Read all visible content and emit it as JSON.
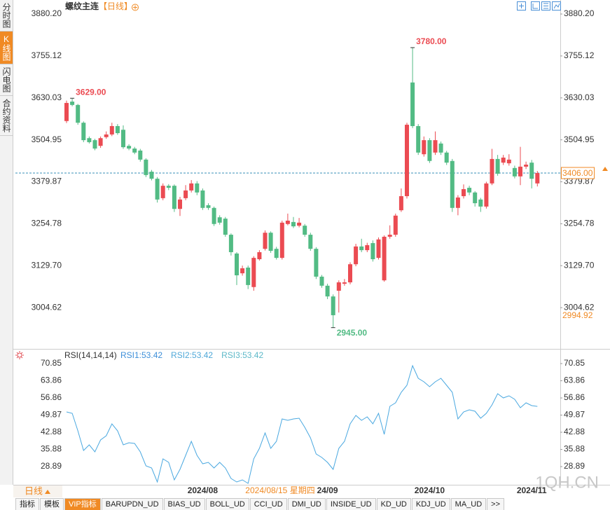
{
  "header": {
    "title": "螺纹主连",
    "period": "【日线】"
  },
  "sidebar": {
    "items": [
      "分时图",
      "K线图",
      "闪电图",
      "合约资料"
    ],
    "active": 1
  },
  "period_tab": "日线",
  "toolbar": {
    "items": [
      "指标",
      "模板",
      "VIP指标",
      "BARUPDN_UD",
      "BIAS_UD",
      "BOLL_UD",
      "CCI_UD",
      "DMI_UD",
      "INSIDE_UD",
      "KD_UD",
      "KDJ_UD",
      "MA_UD",
      ">>"
    ],
    "active": 2
  },
  "watermark": "1QH.CN",
  "chart_data": [
    {
      "type": "candlestick",
      "categories": [
        null,
        null,
        null,
        null,
        null,
        null,
        null,
        null,
        null,
        null,
        null,
        null,
        null,
        null,
        null,
        null,
        null,
        null,
        null,
        null,
        null,
        null,
        null,
        null,
        "2024/08",
        null,
        null,
        null,
        null,
        null,
        null,
        null,
        null,
        null,
        null,
        null,
        null,
        null,
        null,
        null,
        null,
        null,
        null,
        null,
        null,
        null,
        "24/09",
        null,
        null,
        null,
        null,
        null,
        null,
        null,
        null,
        null,
        null,
        null,
        null,
        null,
        null,
        null,
        null,
        null,
        "2024/10",
        null,
        null,
        null,
        null,
        null,
        null,
        null,
        null,
        null,
        null,
        null,
        null,
        null,
        null,
        null,
        null,
        null,
        "2024/11",
        null
      ],
      "open": [
        3561,
        3619,
        3609,
        3556,
        3510,
        3504,
        3487,
        3513,
        3521,
        3546,
        3535,
        3487,
        3479,
        3473,
        3446,
        3410,
        3389,
        3331,
        3368,
        3368,
        3299,
        3331,
        3354,
        3375,
        3354,
        3310,
        3302,
        3274,
        3270,
        3222,
        3166,
        3107,
        3124,
        3066,
        3149,
        3180,
        3228,
        3180,
        3153,
        3254,
        3260,
        3249,
        3249,
        3222,
        3180,
        3097,
        3070,
        3038,
        3055,
        3076,
        3080,
        3134,
        3187,
        3176,
        3197,
        3153,
        3086,
        3216,
        3222,
        3295,
        3337,
        3676,
        3546,
        3462,
        3504,
        3467,
        3494,
        3467,
        3442,
        3302,
        3337,
        3362,
        3348,
        3327,
        3306,
        3375,
        3448,
        3437,
        3435,
        3421,
        3396,
        3425,
        3437,
        3375
      ],
      "high": [
        3622,
        3629,
        3612,
        3560,
        3515,
        3508,
        3515,
        3530,
        3556,
        3552,
        3548,
        3492,
        3484,
        3478,
        3450,
        3415,
        3394,
        3375,
        3373,
        3372,
        3335,
        3370,
        3385,
        3382,
        3360,
        3316,
        3306,
        3280,
        3275,
        3226,
        3170,
        3130,
        3130,
        3158,
        3176,
        3235,
        3232,
        3186,
        3264,
        3285,
        3275,
        3272,
        3254,
        3228,
        3185,
        3102,
        3076,
        3044,
        3086,
        3090,
        3140,
        3195,
        3210,
        3198,
        3205,
        3214,
        3220,
        3250,
        3285,
        3360,
        3556,
        3780,
        3552,
        3515,
        3510,
        3530,
        3500,
        3472,
        3448,
        3340,
        3372,
        3368,
        3352,
        3332,
        3380,
        3478,
        3460,
        3460,
        3462,
        3428,
        3484,
        3440,
        3445,
        3412
      ],
      "low": [
        3555,
        3605,
        3550,
        3498,
        3494,
        3474,
        3481,
        3508,
        3516,
        3520,
        3478,
        3474,
        3462,
        3440,
        3394,
        3384,
        3318,
        3325,
        3355,
        3290,
        3278,
        3325,
        3348,
        3340,
        3296,
        3296,
        3248,
        3252,
        3216,
        3160,
        3072,
        3100,
        3060,
        3055,
        3145,
        3175,
        3168,
        3148,
        3148,
        3250,
        3242,
        3244,
        3216,
        3174,
        3090,
        3064,
        3030,
        2945,
        2990,
        3070,
        3074,
        3128,
        3170,
        3170,
        3142,
        3148,
        3082,
        3210,
        3216,
        3290,
        3330,
        3540,
        3460,
        3455,
        3436,
        3460,
        3460,
        3430,
        3290,
        3280,
        3330,
        3340,
        3306,
        3290,
        3300,
        3370,
        3398,
        3430,
        3428,
        3390,
        3370,
        3418,
        3360,
        3366
      ],
      "close": [
        3615,
        3609,
        3556,
        3504,
        3498,
        3479,
        3510,
        3521,
        3546,
        3525,
        3483,
        3479,
        3467,
        3446,
        3400,
        3389,
        3327,
        3368,
        3362,
        3299,
        3327,
        3354,
        3375,
        3348,
        3302,
        3302,
        3254,
        3258,
        3222,
        3170,
        3101,
        3122,
        3072,
        3153,
        3170,
        3228,
        3174,
        3153,
        3258,
        3264,
        3247,
        3258,
        3222,
        3180,
        3097,
        3070,
        3038,
        2982,
        3080,
        3080,
        3134,
        3187,
        3176,
        3191,
        3149,
        3208,
        3216,
        3222,
        3279,
        3337,
        3550,
        3546,
        3467,
        3504,
        3442,
        3504,
        3467,
        3437,
        3302,
        3333,
        3358,
        3348,
        3316,
        3306,
        3375,
        3448,
        3404,
        3452,
        3446,
        3396,
        3425,
        3431,
        3389,
        3406
      ],
      "up_color": "#eb4b52",
      "down_color": "#52bb84",
      "ylim": [
        2890,
        3880.2
      ],
      "yticks": [
        {
          "value": 3880.2,
          "label": "3880.20"
        },
        {
          "value": 3755.12,
          "label": "3755.12"
        },
        {
          "value": 3630.03,
          "label": "3630.03"
        },
        {
          "value": 3504.95,
          "label": "3504.95"
        },
        {
          "value": 3379.87,
          "label": "3379.87"
        },
        {
          "value": 3254.78,
          "label": "3254.78"
        },
        {
          "value": 3129.7,
          "label": "3129.70"
        },
        {
          "value": 3004.62,
          "label": "3004.62"
        }
      ],
      "annotations": [
        {
          "value": 3629,
          "label": "3629.00"
        },
        {
          "value": 3780,
          "label": "3780.00"
        },
        {
          "value": 2945,
          "label": "2945.00"
        }
      ],
      "last_price": {
        "value": 3406,
        "label": "3406.00"
      },
      "cursor_price": {
        "value": 2994.92,
        "label": "2994.92"
      },
      "cursor_date": "2024/08/15 星期四"
    },
    {
      "type": "line",
      "title": "RSI(14,14,14)",
      "legend": [
        {
          "name": "RSI1:53.42",
          "color": "#3d8fd9"
        },
        {
          "name": "RSI2:53.42",
          "color": "#4fa8d8"
        },
        {
          "name": "RSI3:53.42",
          "color": "#5cb8c8"
        }
      ],
      "color": "#4aa8e0",
      "values": [
        51.16,
        50.59,
        43.46,
        35.47,
        37.75,
        34.9,
        39.75,
        41.46,
        46.31,
        43.46,
        37.75,
        38.61,
        38.32,
        34.9,
        29.2,
        28.34,
        22.63,
        32.05,
        30.62,
        23.49,
        27.77,
        33.47,
        39.18,
        33.47,
        30.05,
        30.62,
        28.34,
        30.62,
        28.34,
        24.06,
        22.63,
        23.49,
        22.06,
        32.05,
        36.33,
        42.6,
        36.33,
        39.18,
        48.31,
        47.74,
        48.31,
        48.6,
        44.89,
        40.61,
        34.05,
        32.62,
        30.62,
        27.77,
        36.33,
        39.18,
        46.31,
        49.74,
        47.74,
        49.17,
        46.31,
        50.59,
        42.03,
        53.45,
        54.87,
        59.15,
        62.01,
        69.99,
        64.86,
        63.43,
        61.43,
        63.43,
        64.86,
        62.01,
        59.15,
        48.31,
        51.16,
        52.02,
        51.45,
        48.6,
        50.59,
        54.02,
        58.58,
        56.87,
        57.73,
        56.3,
        52.88,
        54.87,
        53.73,
        53.42
      ],
      "ylim": [
        21,
        72.85
      ],
      "yticks": [
        70.85,
        63.86,
        56.86,
        49.87,
        42.88,
        35.88,
        28.89
      ]
    }
  ]
}
